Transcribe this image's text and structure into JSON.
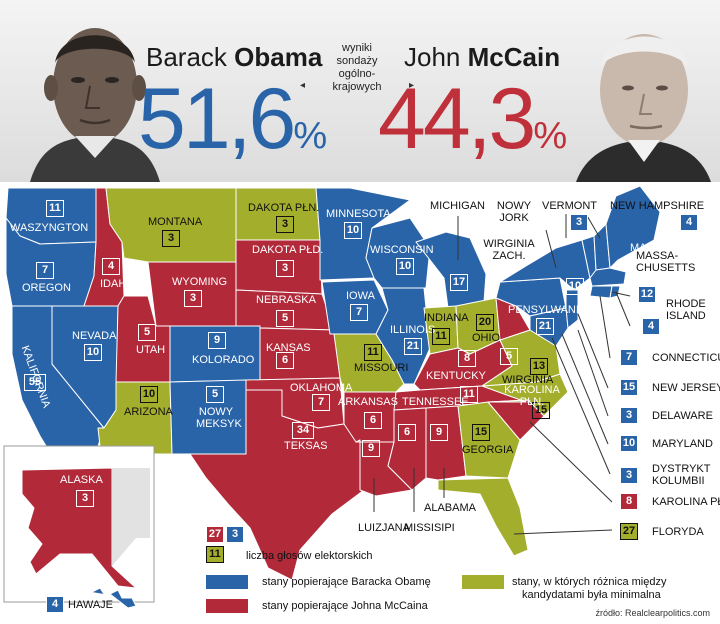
{
  "colors": {
    "obama": "#2a64a8",
    "mccain": "#b22a3a",
    "close": "#a3ae2c",
    "neutral": "#e2e2e2"
  },
  "header": {
    "obama_first": "Barack",
    "obama_last": "Obama",
    "obama_pct_main": "51,6",
    "obama_pct_sign": "%",
    "mccain_first": "John",
    "mccain_last": "McCain",
    "mccain_pct_main": "44,3",
    "mccain_pct_sign": "%",
    "note_lines": [
      "wyniki",
      "sondaży",
      "ogólno-",
      "krajowych"
    ]
  },
  "states": {
    "washington": {
      "name": "WASZYNGTON",
      "votes": "11"
    },
    "oregon": {
      "name": "OREGON",
      "votes": "7"
    },
    "california": {
      "name": "KALIFORNIA",
      "votes": "55"
    },
    "nevada": {
      "name": "NEVADA",
      "votes": "10"
    },
    "idaho": {
      "name": "IDAHO",
      "votes": "4"
    },
    "montana": {
      "name": "MONTANA",
      "votes": "3"
    },
    "wyoming": {
      "name": "WYOMING",
      "votes": "3"
    },
    "utah": {
      "name": "UTAH",
      "votes": "5"
    },
    "arizona": {
      "name": "ARIZONA",
      "votes": "10"
    },
    "colorado": {
      "name": "KOLORADO",
      "votes": "9"
    },
    "newmexico": {
      "name": "NOWY MEKSYK",
      "votes": "5"
    },
    "nd": {
      "name": "DAKOTA PŁN.",
      "votes": "3"
    },
    "sd": {
      "name": "DAKOTA PŁD.",
      "votes": "3"
    },
    "nebraska": {
      "name": "NEBRASKA",
      "votes": "5"
    },
    "kansas": {
      "name": "KANSAS",
      "votes": "6"
    },
    "oklahoma": {
      "name": "OKLAHOMA",
      "votes": "7"
    },
    "texas": {
      "name": "TEKSAS",
      "votes": "34"
    },
    "minnesota": {
      "name": "MINNESOTA",
      "votes": "10"
    },
    "iowa": {
      "name": "IOWA",
      "votes": "7"
    },
    "missouri": {
      "name": "MISSOURI",
      "votes": "11"
    },
    "arkansas": {
      "name": "ARKANSAS",
      "votes": "6"
    },
    "louisiana": {
      "name": "LUIZJANA",
      "votes": "9"
    },
    "wisconsin": {
      "name": "WISCONSIN",
      "votes": "10"
    },
    "illinois": {
      "name": "ILLINOIS",
      "votes": "21"
    },
    "michigan": {
      "name": "MICHIGAN",
      "votes": "17"
    },
    "indiana": {
      "name": "INDIANA",
      "votes": "11"
    },
    "ohio": {
      "name": "OHIO",
      "votes": "20"
    },
    "kentucky": {
      "name": "KENTUCKY",
      "votes": "8"
    },
    "tennessee": {
      "name": "TENNESSEE",
      "votes": "11"
    },
    "mississippi": {
      "name": "MISSISIPI",
      "votes": "6"
    },
    "alabama": {
      "name": "ALABAMA",
      "votes": "9"
    },
    "georgia": {
      "name": "GEORGIA",
      "votes": "15"
    },
    "florida": {
      "name": "FLORYDA",
      "votes": "27"
    },
    "sc": {
      "name": "KAROLINA PŁD.",
      "votes": "8"
    },
    "nc": {
      "name": "KAROLINA PŁN.",
      "votes": "15"
    },
    "virginia": {
      "name": "WIRGINIA",
      "votes": "13"
    },
    "wv": {
      "name": "WIRGINIA ZACH.",
      "votes": "5"
    },
    "pennsylvania": {
      "name": "PENSYLWANIA",
      "votes": "21"
    },
    "newyork": {
      "name": "NOWY JORK",
      "votes": "10"
    },
    "vermont": {
      "name": "VERMONT",
      "votes": "3"
    },
    "nh": {
      "name": "NEW HAMPSHIRE",
      "votes": "4"
    },
    "maine": {
      "name": "MAINE",
      "votes": "4"
    },
    "massachusetts": {
      "name": "MASSA-CHUSETTS",
      "name_line1": "MASSA-",
      "name_line2": "CHUSETTS",
      "votes": "12"
    },
    "ri": {
      "name": "RHODE ISLAND",
      "name_line1": "RHODE",
      "name_line2": "ISLAND",
      "votes": "4"
    },
    "connecticut": {
      "name": "CONNECTICUT",
      "votes": "7"
    },
    "newjersey": {
      "name": "NEW JERSEY",
      "votes": "15"
    },
    "delaware": {
      "name": "DELAWARE",
      "votes": "3"
    },
    "maryland": {
      "name": "MARYLAND",
      "votes": "10"
    },
    "dc": {
      "name": "DYSTRYKT KOLUMBII",
      "name_line1": "DYSTRYKT",
      "name_line2": "KOLUMBII",
      "votes": "3"
    },
    "alaska": {
      "name": "ALASKA",
      "votes": "3"
    },
    "hawaii": {
      "name": "HAWAJE",
      "votes": "4"
    }
  },
  "legend": {
    "sample_red": "27",
    "sample_blue": "3",
    "sample_green": "11",
    "votes_label": "liczba głosów elektorskich",
    "obama_label": "stany popierające Baracka Obamę",
    "mccain_label": "stany popierające Johna McCaina",
    "close_label_1": "stany, w których różnica między",
    "close_label_2": "kandydatami była minimalna"
  },
  "source": "źródło: Realclearpolitics.com"
}
